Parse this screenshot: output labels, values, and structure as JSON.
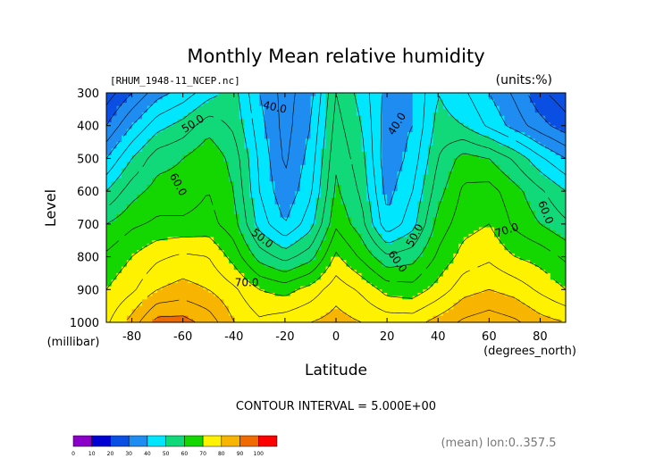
{
  "chart_data": {
    "type": "contour",
    "title": "Monthly Mean relative humidity",
    "file_label": "[RHUM_1948-11_NCEP.nc]",
    "units_label": "(units:%)",
    "ylabel": "Level",
    "y_unit_label": "(millibar)",
    "xlabel": "Latitude",
    "x_unit_label": "(degrees_north)",
    "contour_interval_label": "CONTOUR INTERVAL = 5.000E+00",
    "mean_label": "(mean) lon:0..357.5",
    "xlim": [
      -90,
      90
    ],
    "ylim": [
      1000,
      300
    ],
    "x_ticks": [
      -80,
      -60,
      -40,
      -20,
      0,
      20,
      40,
      60,
      80
    ],
    "y_ticks": [
      300,
      400,
      500,
      600,
      700,
      800,
      900,
      1000
    ],
    "levels": [
      300,
      400,
      500,
      600,
      700,
      800,
      900,
      1000
    ],
    "lat_nodes": [
      -90,
      -80,
      -70,
      -60,
      -50,
      -40,
      -30,
      -20,
      -10,
      0,
      10,
      20,
      30,
      40,
      50,
      60,
      70,
      80,
      90
    ],
    "rh_profile_by_level": [
      [
        22,
        30,
        38,
        42,
        48,
        52,
        40,
        33,
        38,
        55,
        48,
        38,
        40,
        50,
        46,
        40,
        34,
        26,
        22
      ],
      [
        30,
        40,
        48,
        52,
        58,
        54,
        42,
        33,
        40,
        57,
        50,
        37,
        40,
        52,
        50,
        44,
        38,
        32,
        27
      ],
      [
        40,
        50,
        58,
        60,
        64,
        58,
        44,
        34,
        42,
        59,
        52,
        36,
        42,
        55,
        62,
        60,
        54,
        46,
        40
      ],
      [
        50,
        58,
        62,
        62,
        65,
        60,
        45,
        36,
        44,
        61,
        54,
        38,
        45,
        58,
        66,
        67,
        62,
        56,
        50
      ],
      [
        60,
        64,
        66,
        66,
        67,
        62,
        48,
        40,
        48,
        64,
        57,
        41,
        48,
        62,
        68,
        70,
        64,
        60,
        56
      ],
      [
        66,
        70,
        74,
        76,
        75,
        68,
        58,
        53,
        58,
        71,
        64,
        56,
        58,
        66,
        72,
        74,
        70,
        68,
        64
      ],
      [
        70,
        74,
        80,
        82,
        80,
        76,
        70,
        68,
        72,
        78,
        74,
        68,
        67,
        72,
        78,
        80,
        78,
        74,
        70
      ],
      [
        74,
        82,
        92,
        92,
        88,
        80,
        76,
        78,
        80,
        82,
        80,
        78,
        78,
        82,
        86,
        88,
        86,
        82,
        80
      ]
    ],
    "contour_labels": [
      {
        "text": "40.0",
        "lat": -24,
        "level": 345,
        "angle": 12
      },
      {
        "text": "50.0",
        "lat": -56,
        "level": 395,
        "angle": -32
      },
      {
        "text": "60.0",
        "lat": -62,
        "level": 580,
        "angle": 62
      },
      {
        "text": "50.0",
        "lat": -29,
        "level": 745,
        "angle": 38
      },
      {
        "text": "70.0",
        "lat": -35,
        "level": 880,
        "angle": 0
      },
      {
        "text": "40.0",
        "lat": 24,
        "level": 395,
        "angle": -58
      },
      {
        "text": "60.0",
        "lat": 24,
        "level": 815,
        "angle": 55
      },
      {
        "text": "50.0",
        "lat": 31,
        "level": 735,
        "angle": -62
      },
      {
        "text": "70.0",
        "lat": 67,
        "level": 720,
        "angle": -18
      },
      {
        "text": "60.0",
        "lat": 82,
        "level": 665,
        "angle": 68
      }
    ],
    "colorbar": {
      "bounds": [
        "0",
        "10",
        "20",
        "30",
        "40",
        "50",
        "60",
        "70",
        "80",
        "90",
        "100"
      ],
      "colors": [
        "#8a00c8",
        "#0000d2",
        "#0a4fe4",
        "#1e8cf0",
        "#00e6ff",
        "#11d97a",
        "#14d600",
        "#fff200",
        "#f7b400",
        "#f06a00",
        "#ff0000"
      ]
    },
    "fill_colors": [
      "#8a00c8",
      "#0000d2",
      "#0a4fe4",
      "#1e8cf0",
      "#00e6ff",
      "#11d97a",
      "#14d600",
      "#fff200",
      "#f7b400",
      "#f06a00",
      "#ff0000"
    ]
  }
}
